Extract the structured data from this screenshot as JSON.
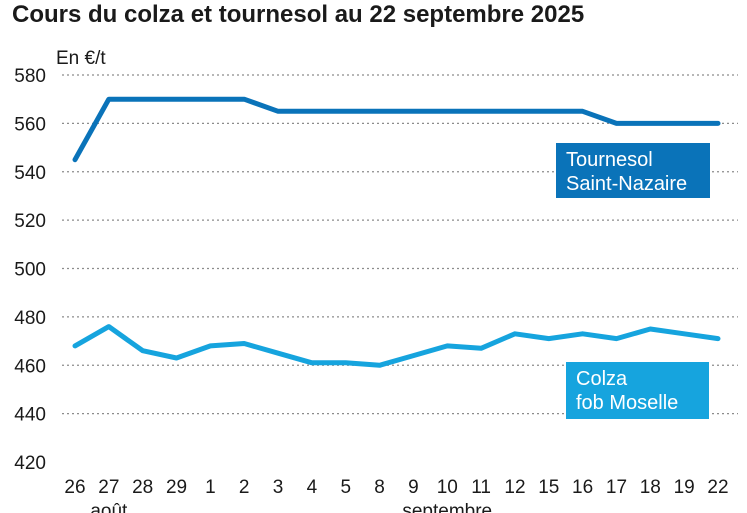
{
  "chart_data": {
    "type": "line",
    "title": "Cours du colza et tournesol au 22 septembre 2025",
    "ylabel": "En €/t",
    "ylim": [
      420,
      580
    ],
    "yticks": [
      420,
      440,
      460,
      480,
      500,
      520,
      540,
      560,
      580
    ],
    "grid": true,
    "categories": [
      "26",
      "27",
      "28",
      "29",
      "1",
      "2",
      "3",
      "4",
      "5",
      "8",
      "9",
      "10",
      "11",
      "12",
      "15",
      "16",
      "17",
      "18",
      "19",
      "22"
    ],
    "month_labels": [
      {
        "label": "août",
        "category_index": 1
      },
      {
        "label": "septembre",
        "category_index": 11
      }
    ],
    "series": [
      {
        "name": "Tournesol Saint-Nazaire",
        "name_lines": [
          "Tournesol",
          "Saint-Nazaire"
        ],
        "color": "#0a73b9",
        "values": [
          545,
          570,
          570,
          570,
          570,
          570,
          565,
          565,
          565,
          565,
          565,
          565,
          565,
          565,
          565,
          565,
          560,
          560,
          560,
          560
        ]
      },
      {
        "name": "Colza fob Moselle",
        "name_lines": [
          "Colza",
          "fob Moselle"
        ],
        "color": "#16a4de",
        "values": [
          468,
          476,
          466,
          463,
          468,
          469,
          465,
          461,
          461,
          460,
          464,
          468,
          467,
          473,
          471,
          473,
          471,
          475,
          473,
          471
        ]
      }
    ]
  }
}
